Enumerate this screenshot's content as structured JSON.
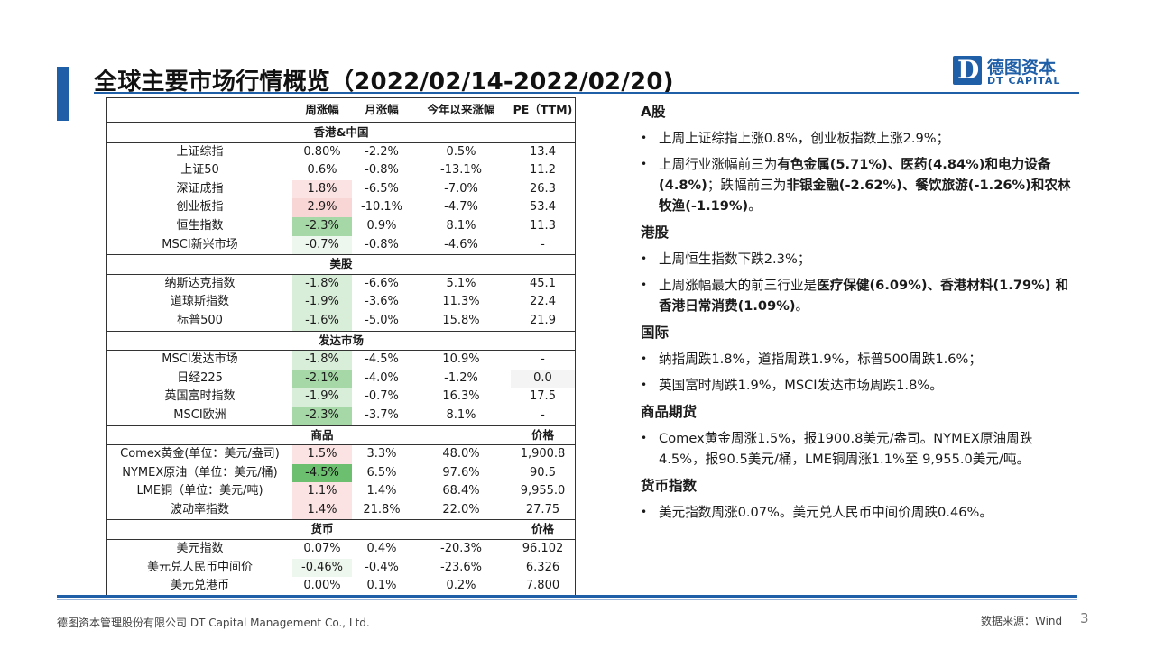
{
  "slide": {
    "title": "全球主要市场行情概览（2022/02/14-2022/02/20)",
    "page_number": "3",
    "accent_color": "#1f5fa8"
  },
  "logo": {
    "mark": "D",
    "cn": "德图资本",
    "en": "DT CAPITAL"
  },
  "table": {
    "headers": [
      "",
      "周涨幅",
      "月涨幅",
      "今年以来涨幅",
      "PE（TTM)"
    ],
    "sections": [
      {
        "name": "香港&中国",
        "rows": [
          [
            "上证综指",
            "0.80%",
            "-2.2%",
            "0.5%",
            "13.4"
          ],
          [
            "上证50",
            "0.6%",
            "-0.8%",
            "-13.1%",
            "11.2"
          ],
          [
            "深证成指",
            "1.8%",
            "-6.5%",
            "-7.0%",
            "26.3"
          ],
          [
            "创业板指",
            "2.9%",
            "-10.1%",
            "-4.7%",
            "53.4"
          ],
          [
            "恒生指数",
            "-2.3%",
            "0.9%",
            "8.1%",
            "11.3"
          ],
          [
            "MSCI新兴市场",
            "-0.7%",
            "-0.8%",
            "-4.6%",
            "-"
          ]
        ]
      },
      {
        "name": "美股",
        "rows": [
          [
            "纳斯达克指数",
            "-1.8%",
            "-6.6%",
            "5.1%",
            "45.1"
          ],
          [
            "道琼斯指数",
            "-1.9%",
            "-3.6%",
            "11.3%",
            "22.4"
          ],
          [
            "标普500",
            "-1.6%",
            "-5.0%",
            "15.8%",
            "21.9"
          ]
        ]
      },
      {
        "name": "发达市场",
        "rows": [
          [
            "MSCI发达市场",
            "-1.8%",
            "-4.5%",
            "10.9%",
            "-"
          ],
          [
            "日经225",
            "-2.1%",
            "-4.0%",
            "-1.2%",
            "0.0"
          ],
          [
            "英国富时指数",
            "-1.9%",
            "-0.7%",
            "16.3%",
            "17.5"
          ],
          [
            "MSCI欧洲",
            "-2.3%",
            "-3.7%",
            "8.1%",
            "-"
          ]
        ]
      },
      {
        "name": "商品",
        "last_col": "价格",
        "rows": [
          [
            "Comex黄金(单位：美元/盎司)",
            "1.5%",
            "3.3%",
            "48.0%",
            "1,900.8"
          ],
          [
            "NYMEX原油（单位：美元/桶)",
            "-4.5%",
            "6.5%",
            "97.6%",
            "90.5"
          ],
          [
            "LME铜（单位：美元/吨)",
            "1.1%",
            "1.4%",
            "68.4%",
            "9,955.0"
          ],
          [
            "波动率指数",
            "1.4%",
            "21.8%",
            "22.0%",
            "27.75"
          ]
        ]
      },
      {
        "name": "货币",
        "last_col": "价格",
        "rows": [
          [
            "美元指数",
            "0.07%",
            "0.4%",
            "-20.3%",
            "96.102"
          ],
          [
            "美元兑人民币中间价",
            "-0.46%",
            "-0.4%",
            "-23.6%",
            "6.326"
          ],
          [
            "美元兑港币",
            "0.00%",
            "0.1%",
            "0.2%",
            "7.800"
          ]
        ]
      }
    ],
    "colors": {
      "negative": "#6cbf6e",
      "positive": "#f8d6d6"
    }
  },
  "commentary": {
    "a_share": {
      "heading": "A股",
      "b1": "上周上证综指上涨0.8%，创业板指数上涨2.9%；",
      "b2_pre": "上周行业涨幅前三为",
      "b2_bold1": "有色金属(5.71%)、医药(4.84%)和电力设备(4.8%)",
      "b2_mid": "；跌幅前三为",
      "b2_bold2": "非银金融(-2.62%)、餐饮旅游(-1.26%)和农林牧渔(-1.19%)",
      "b2_end": "。"
    },
    "hk": {
      "heading": "港股",
      "b1": "上周恒生指数下跌2.3%；",
      "b2_pre": "上周涨幅最大的前三行业是",
      "b2_bold": "医疗保健(6.09%)、香港材料(1.79%) 和香港日常消费(1.09%)",
      "b2_end": "。"
    },
    "intl": {
      "heading": "国际",
      "b1": "纳指周跌1.8%，道指周跌1.9%，标普500周跌1.6%；",
      "b2": "英国富时周跌1.9%，MSCI发达市场周跌1.8%。"
    },
    "commodity": {
      "heading": "商品期货",
      "b1": "Comex黄金周涨1.5%，报1900.8美元/盎司。NYMEX原油周跌4.5%，报90.5美元/桶，LME铜周涨1.1%至 9,955.0美元/吨。"
    },
    "fx": {
      "heading": "货币指数",
      "b1": "美元指数周涨0.07%。美元兑人民币中间价周跌0.46%。"
    }
  },
  "footer": {
    "company": "德图资本管理股份有限公司 DT Capital Management Co., Ltd.",
    "source": "数据来源：Wind"
  }
}
